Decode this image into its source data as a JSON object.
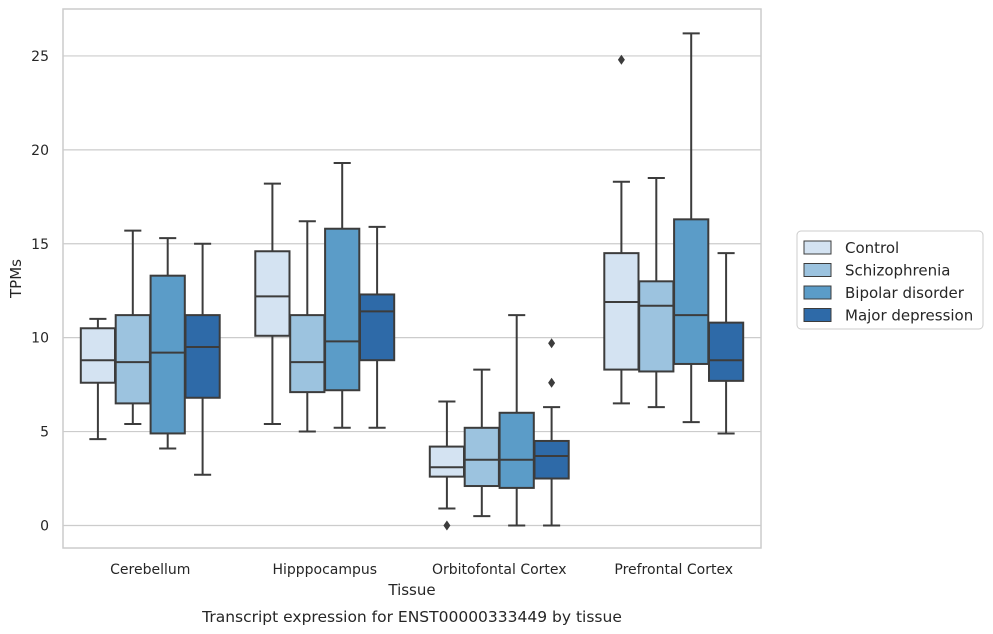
{
  "caption": "Transcript expression for ENST00000333449 by tissue",
  "chart_data": {
    "type": "box",
    "title": "",
    "xlabel": "Tissue",
    "ylabel": "TPMs",
    "ylim": [
      -1.2,
      27.5
    ],
    "yticks": [
      0,
      5,
      10,
      15,
      20,
      25
    ],
    "grid": "horizontal",
    "legend_position": "right",
    "categories": [
      "Cerebellum",
      "Hipppocampus",
      "Orbitofontal Cortex",
      "Prefrontal Cortex"
    ],
    "series": [
      {
        "name": "Control",
        "color": "#d4e3f2",
        "boxes": [
          {
            "whisker_low": 4.6,
            "q1": 7.6,
            "median": 8.8,
            "q3": 10.5,
            "whisker_high": 11.0,
            "outliers": []
          },
          {
            "whisker_low": 5.4,
            "q1": 10.1,
            "median": 12.2,
            "q3": 14.6,
            "whisker_high": 18.2,
            "outliers": []
          },
          {
            "whisker_low": 0.9,
            "q1": 2.6,
            "median": 3.1,
            "q3": 4.2,
            "whisker_high": 6.6,
            "outliers": [
              0.0
            ]
          },
          {
            "whisker_low": 6.5,
            "q1": 8.3,
            "median": 11.9,
            "q3": 14.5,
            "whisker_high": 18.3,
            "outliers": [
              24.8
            ]
          }
        ]
      },
      {
        "name": "Schizophrenia",
        "color": "#9cc3df",
        "boxes": [
          {
            "whisker_low": 5.4,
            "q1": 6.5,
            "median": 8.7,
            "q3": 11.2,
            "whisker_high": 15.7,
            "outliers": []
          },
          {
            "whisker_low": 5.0,
            "q1": 7.1,
            "median": 8.7,
            "q3": 11.2,
            "whisker_high": 16.2,
            "outliers": []
          },
          {
            "whisker_low": 0.5,
            "q1": 2.1,
            "median": 3.5,
            "q3": 5.2,
            "whisker_high": 8.3,
            "outliers": []
          },
          {
            "whisker_low": 6.3,
            "q1": 8.2,
            "median": 11.7,
            "q3": 13.0,
            "whisker_high": 18.5,
            "outliers": []
          }
        ]
      },
      {
        "name": "Bipolar disorder",
        "color": "#5b9cc8",
        "boxes": [
          {
            "whisker_low": 4.1,
            "q1": 4.9,
            "median": 9.2,
            "q3": 13.3,
            "whisker_high": 15.3,
            "outliers": []
          },
          {
            "whisker_low": 5.2,
            "q1": 7.2,
            "median": 9.8,
            "q3": 15.8,
            "whisker_high": 19.3,
            "outliers": []
          },
          {
            "whisker_low": 0.0,
            "q1": 2.0,
            "median": 3.5,
            "q3": 6.0,
            "whisker_high": 11.2,
            "outliers": []
          },
          {
            "whisker_low": 5.5,
            "q1": 8.6,
            "median": 11.2,
            "q3": 16.3,
            "whisker_high": 26.2,
            "outliers": []
          }
        ]
      },
      {
        "name": "Major depression",
        "color": "#2e6aa8",
        "boxes": [
          {
            "whisker_low": 2.7,
            "q1": 6.8,
            "median": 9.5,
            "q3": 11.2,
            "whisker_high": 15.0,
            "outliers": []
          },
          {
            "whisker_low": 5.2,
            "q1": 8.8,
            "median": 11.4,
            "q3": 12.3,
            "whisker_high": 15.9,
            "outliers": []
          },
          {
            "whisker_low": 0.0,
            "q1": 2.5,
            "median": 3.7,
            "q3": 4.5,
            "whisker_high": 6.3,
            "outliers": [
              7.6,
              9.7
            ]
          },
          {
            "whisker_low": 4.9,
            "q1": 7.7,
            "median": 8.8,
            "q3": 10.8,
            "whisker_high": 14.5,
            "outliers": []
          }
        ]
      }
    ]
  }
}
